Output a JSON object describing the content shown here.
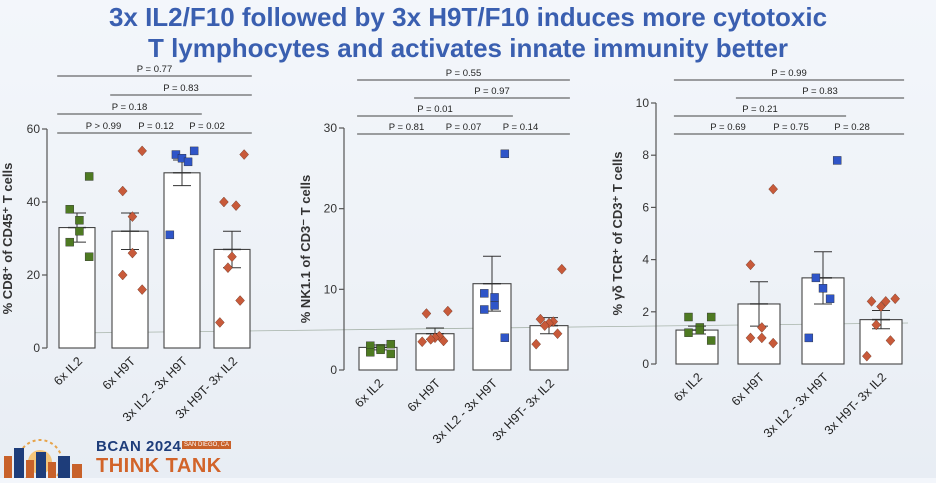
{
  "slide": {
    "title_line1": "3x IL2/F10 followed by 3x H9T/F10 induces more cytotoxic",
    "title_line2": "T lymphocytes and activates innate immunity better"
  },
  "branding": {
    "event": "BCAN 2024",
    "location": "SAN DIEGO, CA",
    "subtitle": "THINK TANK"
  },
  "colors": {
    "title": "#3a5fb0",
    "IL2": "#4e7a22",
    "H9T": "#c85a3a",
    "combo": "#2f55c8"
  },
  "chart_data": [
    {
      "type": "bar",
      "ylabel": "% CD8⁺ of CD45⁺ T cells",
      "ylim": [
        0,
        60
      ],
      "yticks": [
        0,
        20,
        40,
        60
      ],
      "categories": [
        "6x IL2",
        "6x H9T",
        "3x IL2 - 3x H9T",
        "3x H9T- 3x IL2"
      ],
      "means": [
        33,
        32,
        48,
        27
      ],
      "sem": [
        4,
        5,
        3.5,
        5
      ],
      "points": [
        [
          47,
          38,
          35,
          32,
          29,
          25
        ],
        [
          54,
          43,
          36,
          26,
          20,
          16
        ],
        [
          54,
          53,
          52,
          51,
          31
        ],
        [
          53,
          40,
          39,
          25,
          22,
          13,
          7
        ]
      ],
      "marker_colors": [
        "IL2",
        "H9T",
        "combo",
        "H9T"
      ],
      "marker_shapes": [
        "square",
        "diamond",
        "square",
        "diamond"
      ],
      "comparisons": [
        {
          "from": 0,
          "to": 3,
          "p": "P = 0.77"
        },
        {
          "from": 1,
          "to": 3,
          "p": "P = 0.83"
        },
        {
          "from": 0,
          "to": 2,
          "p": "P = 0.18"
        },
        {
          "from": 0,
          "to": 1,
          "p": "P > 0.99"
        },
        {
          "from": 1,
          "to": 2,
          "p": "P = 0.12"
        },
        {
          "from": 2,
          "to": 3,
          "p": "P = 0.02"
        }
      ]
    },
    {
      "type": "bar",
      "ylabel": "% NK1.1 of CD3⁻ T cells",
      "ylim": [
        0,
        30
      ],
      "yticks": [
        0,
        10,
        20,
        30
      ],
      "categories": [
        "6x IL2",
        "6x H9T",
        "3x IL2 - 3x H9T",
        "3x H9T- 3x IL2"
      ],
      "means": [
        2.8,
        4.5,
        10.7,
        5.5
      ],
      "sem": [
        0.3,
        0.7,
        3.4,
        1.0
      ],
      "points": [
        [
          3.2,
          3.0,
          2.7,
          2.5,
          2.2,
          2.0
        ],
        [
          7.3,
          7.0,
          4.2,
          4.0,
          3.8,
          3.6,
          3.5
        ],
        [
          26.8,
          9.5,
          9.0,
          8.0,
          7.5,
          4.0
        ],
        [
          12.5,
          6.3,
          6.0,
          5.8,
          5.5,
          4.5,
          3.2
        ]
      ],
      "marker_colors": [
        "IL2",
        "H9T",
        "combo",
        "H9T"
      ],
      "marker_shapes": [
        "square",
        "diamond",
        "square",
        "diamond"
      ],
      "comparisons": [
        {
          "from": 0,
          "to": 3,
          "p": "P = 0.55"
        },
        {
          "from": 1,
          "to": 3,
          "p": "P = 0.97"
        },
        {
          "from": 0,
          "to": 2,
          "p": "P = 0.01"
        },
        {
          "from": 0,
          "to": 1,
          "p": "P = 0.81"
        },
        {
          "from": 1,
          "to": 2,
          "p": "P = 0.07"
        },
        {
          "from": 2,
          "to": 3,
          "p": "P = 0.14"
        }
      ]
    },
    {
      "type": "bar",
      "ylabel": "% γδ TCR⁺ of CD3⁺ T cells",
      "ylim": [
        0,
        10
      ],
      "yticks": [
        0,
        2,
        4,
        6,
        8,
        10
      ],
      "categories": [
        "6x IL2",
        "6x H9T",
        "3x IL2 - 3x H9T",
        "3x H9T- 3x IL2"
      ],
      "means": [
        1.3,
        2.3,
        3.3,
        1.7
      ],
      "sem": [
        0.15,
        0.85,
        1.0,
        0.35
      ],
      "points": [
        [
          1.8,
          1.8,
          1.4,
          1.3,
          1.2,
          0.9
        ],
        [
          6.7,
          3.8,
          1.4,
          1.0,
          1.0,
          0.8
        ],
        [
          7.8,
          3.3,
          2.9,
          2.5,
          1.0
        ],
        [
          2.5,
          2.4,
          2.4,
          2.2,
          1.5,
          0.9,
          0.3
        ]
      ],
      "marker_colors": [
        "IL2",
        "H9T",
        "combo",
        "H9T"
      ],
      "marker_shapes": [
        "square",
        "diamond",
        "square",
        "diamond"
      ],
      "comparisons": [
        {
          "from": 0,
          "to": 3,
          "p": "P = 0.99"
        },
        {
          "from": 1,
          "to": 3,
          "p": "P = 0.83"
        },
        {
          "from": 0,
          "to": 2,
          "p": "P = 0.21"
        },
        {
          "from": 0,
          "to": 1,
          "p": "P = 0.69"
        },
        {
          "from": 1,
          "to": 2,
          "p": "P = 0.75"
        },
        {
          "from": 2,
          "to": 3,
          "p": "P = 0.28"
        }
      ]
    }
  ]
}
